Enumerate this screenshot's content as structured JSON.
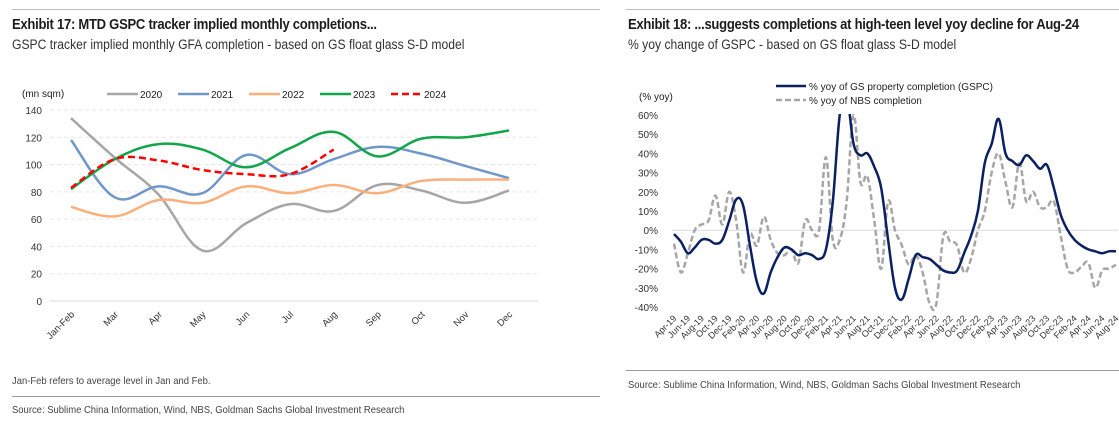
{
  "exhibit17": {
    "title": "Exhibit 17: MTD GSPC tracker implied monthly completions...",
    "subtitle": "GSPC tracker implied monthly GFA completion - based on GS float glass S-D model",
    "note": "Jan-Feb refers to average level in Jan and Feb.",
    "source": "Source: Sublime China Information, Wind, NBS, Goldman Sachs Global Investment Research"
  },
  "exhibit18": {
    "title": "Exhibit 18: ...suggests completions at high-teen level yoy decline for Aug-24",
    "subtitle": "% yoy change of GSPC - based on GS float glass S-D model",
    "source": "Source: Sublime China Information, Wind, NBS, Goldman Sachs Global Investment Research"
  },
  "chart_data": [
    {
      "type": "line",
      "title": "Exhibit 17: MTD GSPC tracker implied monthly completions...",
      "ylabel": "(mn sqm)",
      "xlabel": "",
      "ylim": [
        0,
        140
      ],
      "yticks": [
        0,
        20,
        40,
        60,
        80,
        100,
        120,
        140
      ],
      "grid": true,
      "legend": "top",
      "categories": [
        "Jan-Feb",
        "Mar",
        "Apr",
        "May",
        "Jun",
        "Jul",
        "Aug",
        "Sep",
        "Oct",
        "Nov",
        "Dec"
      ],
      "series": [
        {
          "name": "2020",
          "color": "#a6a6a6",
          "dash": false,
          "values": [
            134,
            105,
            78,
            37,
            57,
            71,
            66,
            85,
            81,
            72,
            81
          ]
        },
        {
          "name": "2021",
          "color": "#6f97c9",
          "dash": false,
          "values": [
            118,
            76,
            84,
            79,
            107,
            93,
            104,
            113,
            108,
            99,
            90
          ]
        },
        {
          "name": "2022",
          "color": "#fbb07c",
          "dash": false,
          "values": [
            69,
            62,
            74,
            72,
            84,
            79,
            85,
            79,
            88,
            89,
            89
          ]
        },
        {
          "name": "2023",
          "color": "#12a64a",
          "dash": false,
          "values": [
            82,
            104,
            115,
            111,
            98,
            112,
            124,
            106,
            119,
            120,
            125
          ]
        },
        {
          "name": "2024",
          "color": "#ff0000",
          "dash": true,
          "values": [
            83,
            104,
            103,
            96,
            93,
            93,
            111
          ]
        }
      ]
    },
    {
      "type": "line",
      "title": "Exhibit 18: ...suggests completions at high-teen level yoy decline for Aug-24",
      "ylabel": "(% yoy)",
      "xlabel": "",
      "ylim": [
        -40,
        60
      ],
      "yticks": [
        -40,
        -30,
        -20,
        -10,
        0,
        10,
        20,
        30,
        40,
        50,
        60
      ],
      "ytick_format": "percent",
      "grid": false,
      "legend": "top",
      "x": [
        "Apr-19",
        "May-19",
        "Jun-19",
        "Jul-19",
        "Aug-19",
        "Sep-19",
        "Oct-19",
        "Nov-19",
        "Dec-19",
        "Jan-20",
        "Feb-20",
        "Mar-20",
        "Apr-20",
        "May-20",
        "Jun-20",
        "Jul-20",
        "Aug-20",
        "Sep-20",
        "Oct-20",
        "Nov-20",
        "Dec-20",
        "Jan-21",
        "Feb-21",
        "Mar-21",
        "Apr-21",
        "May-21",
        "Jun-21",
        "Jul-21",
        "Aug-21",
        "Sep-21",
        "Oct-21",
        "Nov-21",
        "Dec-21",
        "Jan-22",
        "Feb-22",
        "Mar-22",
        "Apr-22",
        "May-22",
        "Jun-22",
        "Jul-22",
        "Aug-22",
        "Sep-22",
        "Oct-22",
        "Nov-22",
        "Dec-22",
        "Jan-23",
        "Feb-23",
        "Mar-23",
        "Apr-23",
        "May-23",
        "Jun-23",
        "Jul-23",
        "Aug-23",
        "Sep-23",
        "Oct-23",
        "Nov-23",
        "Dec-23",
        "Jan-24",
        "Feb-24",
        "Mar-24",
        "Apr-24",
        "May-24",
        "Jun-24",
        "Jul-24",
        "Aug-24"
      ],
      "xtick_labels": [
        "Apr-19",
        "Jun-19",
        "Aug-19",
        "Oct-19",
        "Dec-19",
        "Feb-20",
        "Apr-20",
        "Jun-20",
        "Aug-20",
        "Oct-20",
        "Dec-20",
        "Feb-21",
        "Apr-21",
        "Jun-21",
        "Aug-21",
        "Oct-21",
        "Dec-21",
        "Feb-22",
        "Apr-22",
        "Jun-22",
        "Aug-22",
        "Oct-22",
        "Dec-22",
        "Feb-23",
        "Apr-23",
        "Jun-23",
        "Aug-23",
        "Oct-23",
        "Dec-23",
        "Feb-24",
        "Apr-24",
        "Jun-24",
        "Aug-24"
      ],
      "series": [
        {
          "name": "% yoy of GS property completion (GSPC)",
          "color": "#0a2062",
          "dash": false,
          "values": [
            -2,
            -6,
            -12,
            -9,
            -5,
            -5,
            -7,
            -5,
            5,
            16,
            13,
            -8,
            -27,
            -33,
            -22,
            -14,
            -9,
            -10,
            -13,
            -12,
            -13,
            -15,
            -10,
            15,
            60,
            70,
            45,
            39,
            40,
            33,
            22,
            -5,
            -30,
            -36,
            -25,
            -13,
            -14,
            -15,
            -18,
            -21,
            -22,
            -21,
            -12,
            -3,
            10,
            35,
            45,
            58,
            40,
            36,
            34,
            39,
            36,
            32,
            34,
            22,
            8,
            0,
            -5,
            -8,
            -10,
            -11,
            -12,
            -11,
            -11
          ]
        },
        {
          "name": "% yoy of NBS completion",
          "color": "#a6a6a6",
          "dash": true,
          "values": [
            -7,
            -22,
            -12,
            0,
            3,
            5,
            18,
            3,
            20,
            5,
            -22,
            -2,
            -8,
            7,
            -5,
            -12,
            -13,
            -10,
            -17,
            5,
            0,
            0,
            38,
            -5,
            -5,
            15,
            60,
            25,
            28,
            5,
            -20,
            15,
            0,
            -8,
            -18,
            -13,
            -22,
            -38,
            -38,
            -3,
            -6,
            -8,
            -22,
            -15,
            0,
            10,
            30,
            40,
            25,
            12,
            35,
            15,
            20,
            12,
            12,
            15,
            -3,
            -20,
            -22,
            -19,
            -17,
            -30,
            -21,
            -20,
            -18
          ]
        }
      ]
    }
  ]
}
